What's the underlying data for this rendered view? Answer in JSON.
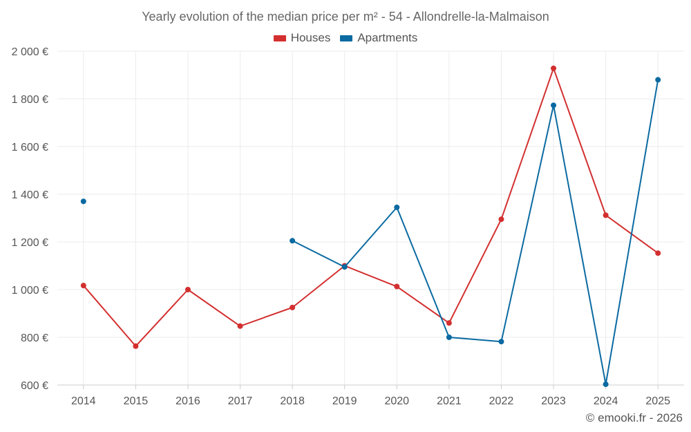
{
  "chart_data": {
    "type": "line",
    "title": "Yearly evolution of the median price per m² - 54 - Allondrelle-la-Malmaison",
    "categories": [
      "2014",
      "2015",
      "2016",
      "2017",
      "2018",
      "2019",
      "2020",
      "2021",
      "2022",
      "2023",
      "2024",
      "2025"
    ],
    "ylim": [
      600,
      2000
    ],
    "yticks": [
      600,
      800,
      1000,
      1200,
      1400,
      1600,
      1800,
      2000
    ],
    "ytick_labels": [
      "600 €",
      "800 €",
      "1 000 €",
      "1 200 €",
      "1 400 €",
      "1 600 €",
      "1 800 €",
      "2 000 €"
    ],
    "grid": true,
    "legend_position": "top-center",
    "series": [
      {
        "name": "Houses",
        "color": "#d32f2f",
        "values": [
          1017,
          763,
          1000,
          847,
          925,
          1100,
          1013,
          860,
          1295,
          1928,
          1312,
          1153
        ]
      },
      {
        "name": "Apartments",
        "color": "#0a6aa1",
        "values": [
          1370,
          null,
          null,
          null,
          1205,
          1095,
          1345,
          800,
          782,
          1773,
          603,
          1880
        ]
      }
    ]
  },
  "credit": "© emooki.fr - 2026"
}
